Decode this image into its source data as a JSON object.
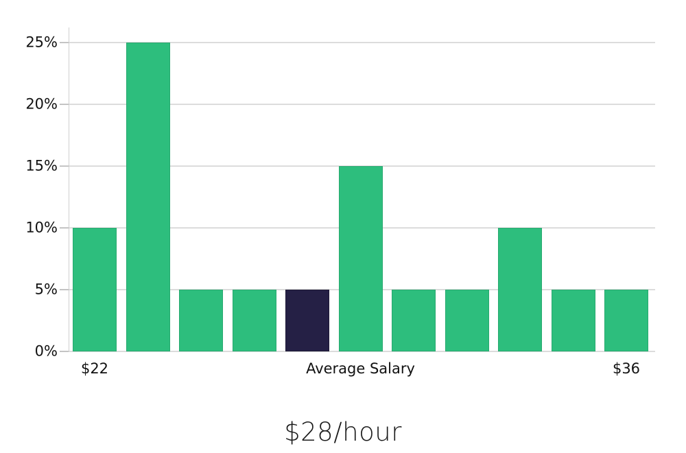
{
  "chart_data": {
    "type": "bar",
    "title": "$28/hour",
    "values": [
      10,
      25,
      5,
      5,
      5,
      15,
      5,
      5,
      10,
      5,
      5
    ],
    "value_unit": "percent",
    "highlight_index": 4,
    "categories_note": "hourly wage bins from $22 to $36",
    "y_ticks": [
      {
        "value": 0,
        "label": "0%"
      },
      {
        "value": 5,
        "label": "5%"
      },
      {
        "value": 10,
        "label": "10%"
      },
      {
        "value": 15,
        "label": "15%"
      },
      {
        "value": 20,
        "label": "20%"
      },
      {
        "value": 25,
        "label": "25%"
      }
    ],
    "x_ticks": [
      {
        "label": "$22",
        "bar_index": 0
      },
      {
        "label": "Average Salary",
        "bar_index": 5
      },
      {
        "label": "$36",
        "bar_index": 10
      }
    ],
    "ylim": [
      0,
      26.2
    ],
    "grid": true,
    "legend": false,
    "colors": {
      "bar": "#2dbe7d",
      "bar_edge": "#27a96f",
      "highlighted_bar": "#252045",
      "highlighted_bar_edge": "#1c1835",
      "gridline": "#dcdcdc",
      "axis_line": "#cfcfcf",
      "tick_mark": "#c4c4c4",
      "label_text": "#111111",
      "title_text": "#1b1b1b",
      "background": "#ffffff"
    }
  }
}
